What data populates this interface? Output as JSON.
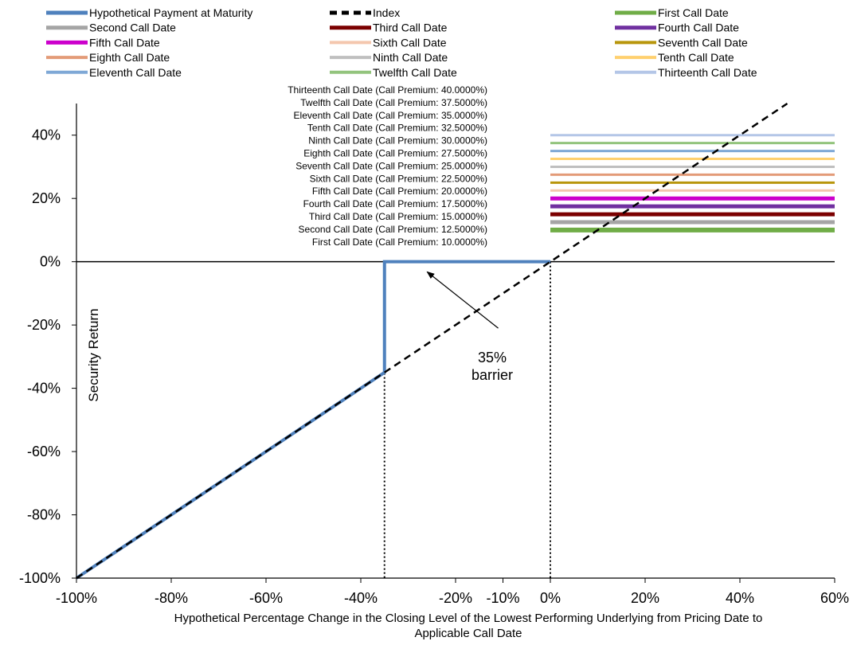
{
  "chart_data": {
    "type": "line",
    "xlabel_lines": [
      "Hypothetical Percentage Change in the Closing Level of the Lowest Performing Underlying from Pricing Date to",
      "Applicable Call Date"
    ],
    "ylabel": "Security Return",
    "xlim": [
      -100,
      60
    ],
    "ylim": [
      -100,
      50
    ],
    "x_ticks": [
      {
        "value": -100,
        "label": "-100%"
      },
      {
        "value": -80,
        "label": "-80%"
      },
      {
        "value": -60,
        "label": "-60%"
      },
      {
        "value": -40,
        "label": "-40%"
      },
      {
        "value": -20,
        "label": "-20%"
      },
      {
        "value": -10,
        "label": "-10%"
      },
      {
        "value": 0,
        "label": "0%"
      },
      {
        "value": 20,
        "label": "20%"
      },
      {
        "value": 40,
        "label": "40%"
      },
      {
        "value": 60,
        "label": "60%"
      }
    ],
    "y_ticks": [
      {
        "value": 40,
        "label": "40%"
      },
      {
        "value": 20,
        "label": "20%"
      },
      {
        "value": 0,
        "label": "0%"
      },
      {
        "value": -20,
        "label": "-20%"
      },
      {
        "value": -40,
        "label": "-40%"
      },
      {
        "value": -60,
        "label": "-60%"
      },
      {
        "value": -80,
        "label": "-80%"
      },
      {
        "value": -100,
        "label": "-100%"
      }
    ],
    "grid": false,
    "legend_position": "top",
    "series": [
      {
        "name": "Hypothetical Payment at Maturity",
        "color": "#4F81BD",
        "style": "solid",
        "points": [
          [
            -100,
            -100
          ],
          [
            -35,
            -35
          ],
          [
            -35,
            0
          ],
          [
            0,
            0
          ]
        ]
      },
      {
        "name": "Index",
        "color": "#000000",
        "style": "dashed",
        "points": [
          [
            -100,
            -100
          ],
          [
            50,
            50
          ]
        ]
      }
    ],
    "call_dates": [
      {
        "name": "First Call Date",
        "color": "#70AD47",
        "premium": 10.0,
        "width": 6
      },
      {
        "name": "Second Call Date",
        "color": "#A5A5A5",
        "premium": 12.5,
        "width": 5
      },
      {
        "name": "Third Call Date",
        "color": "#7B0000",
        "premium": 15.0,
        "width": 5
      },
      {
        "name": "Fourth Call Date",
        "color": "#7030A0",
        "premium": 17.5,
        "width": 5
      },
      {
        "name": "Fifth Call Date",
        "color": "#CC00CC",
        "premium": 20.0,
        "width": 5
      },
      {
        "name": "Sixth Call Date",
        "color": "#F4C7AE",
        "premium": 22.5,
        "width": 3
      },
      {
        "name": "Seventh Call Date",
        "color": "#B8960C",
        "premium": 25.0,
        "width": 3
      },
      {
        "name": "Eighth Call Date",
        "color": "#E39B78",
        "premium": 27.5,
        "width": 3
      },
      {
        "name": "Ninth Call Date",
        "color": "#BFBFBF",
        "premium": 30.0,
        "width": 3
      },
      {
        "name": "Tenth Call Date",
        "color": "#FFD06E",
        "premium": 32.5,
        "width": 3
      },
      {
        "name": "Eleventh Call Date",
        "color": "#7FA8D6",
        "premium": 35.0,
        "width": 3
      },
      {
        "name": "Twelfth Call Date",
        "color": "#93C47D",
        "premium": 37.5,
        "width": 3
      },
      {
        "name": "Thirteenth Call Date",
        "color": "#B4C6E7",
        "premium": 40.0,
        "width": 3
      }
    ],
    "call_line_x_range": [
      0,
      60
    ],
    "call_annotations": [
      "Thirteenth Call Date (Call Premium: 40.0000%)",
      "Twelfth Call Date (Call Premium: 37.5000%)",
      "Eleventh Call Date (Call Premium: 35.0000%)",
      "Tenth Call Date (Call Premium: 32.5000%)",
      "Ninth Call Date (Call Premium: 30.0000%)",
      "Eighth Call Date (Call Premium: 27.5000%)",
      "Seventh Call Date (Call Premium: 25.0000%)",
      "Sixth Call Date (Call Premium: 22.5000%)",
      "Fifth Call Date (Call Premium: 20.0000%)",
      "Fourth Call Date (Call Premium: 17.5000%)",
      "Third Call Date (Call Premium: 15.0000%)",
      "Second Call Date (Call Premium: 12.5000%)",
      "First Call Date (Call Premium: 10.0000%)"
    ],
    "barrier": {
      "value": -35,
      "label_lines": [
        "35%",
        "barrier"
      ]
    },
    "reference_vertical_lines": [
      -35,
      0
    ]
  }
}
